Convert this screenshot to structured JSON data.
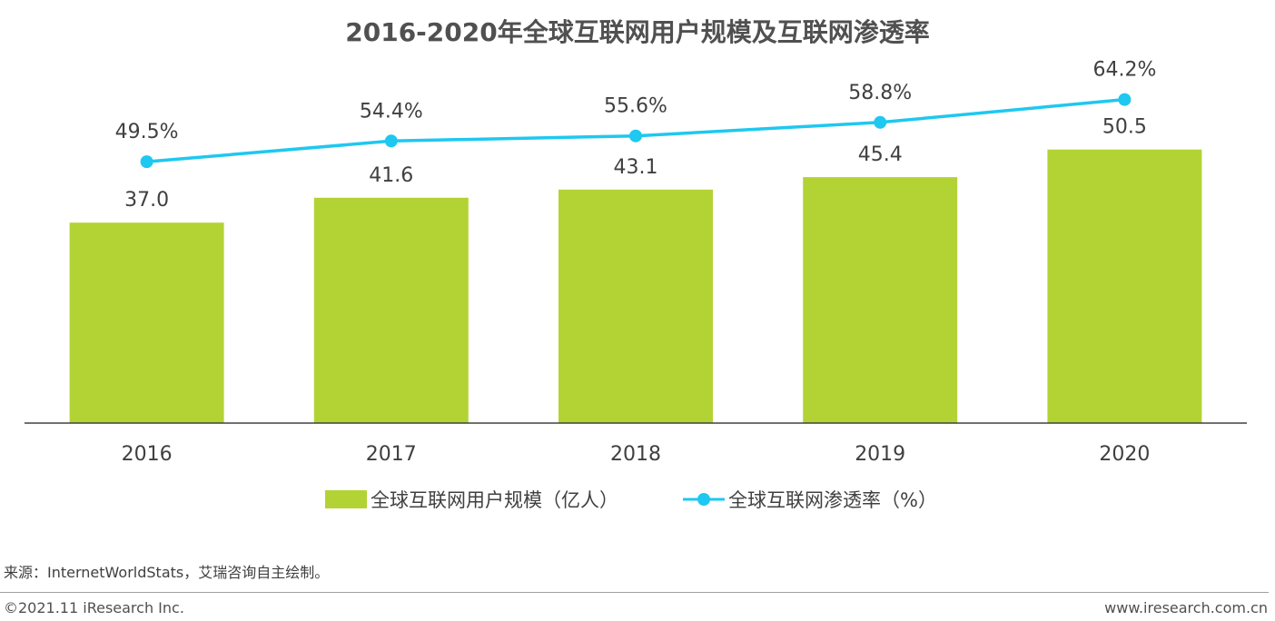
{
  "page": {
    "title": "2016-2020年全球互联网用户规模及互联网渗透率",
    "source": "来源：InternetWorldStats，艾瑞咨询自主绘制。",
    "copyright": "©2021.11 iResearch Inc.",
    "website": "www.iresearch.com.cn"
  },
  "colors": {
    "bar": "#b3d334",
    "line": "#1ec8f0",
    "axis": "#404040"
  },
  "chart_data": {
    "type": "bar+line",
    "title": "2016-2020年全球互联网用户规模及互联网渗透率",
    "categories": [
      "2016",
      "2017",
      "2018",
      "2019",
      "2020"
    ],
    "series": [
      {
        "name": "全球互联网用户规模（亿人）",
        "type": "bar",
        "axis": "left",
        "values": [
          37.0,
          41.6,
          43.1,
          45.4,
          50.5
        ],
        "labels": [
          "37.0",
          "41.6",
          "43.1",
          "45.4",
          "50.5"
        ]
      },
      {
        "name": "全球互联网渗透率（%）",
        "type": "line",
        "axis": "right",
        "values": [
          49.5,
          54.4,
          55.6,
          58.8,
          64.2
        ],
        "labels": [
          "49.5%",
          "54.4%",
          "55.6%",
          "58.8%",
          "64.2%"
        ]
      }
    ],
    "bar_ylim": [
      0,
      60
    ],
    "line_ylim": [
      -20,
      80
    ],
    "legend": "bottom",
    "grid": false
  }
}
